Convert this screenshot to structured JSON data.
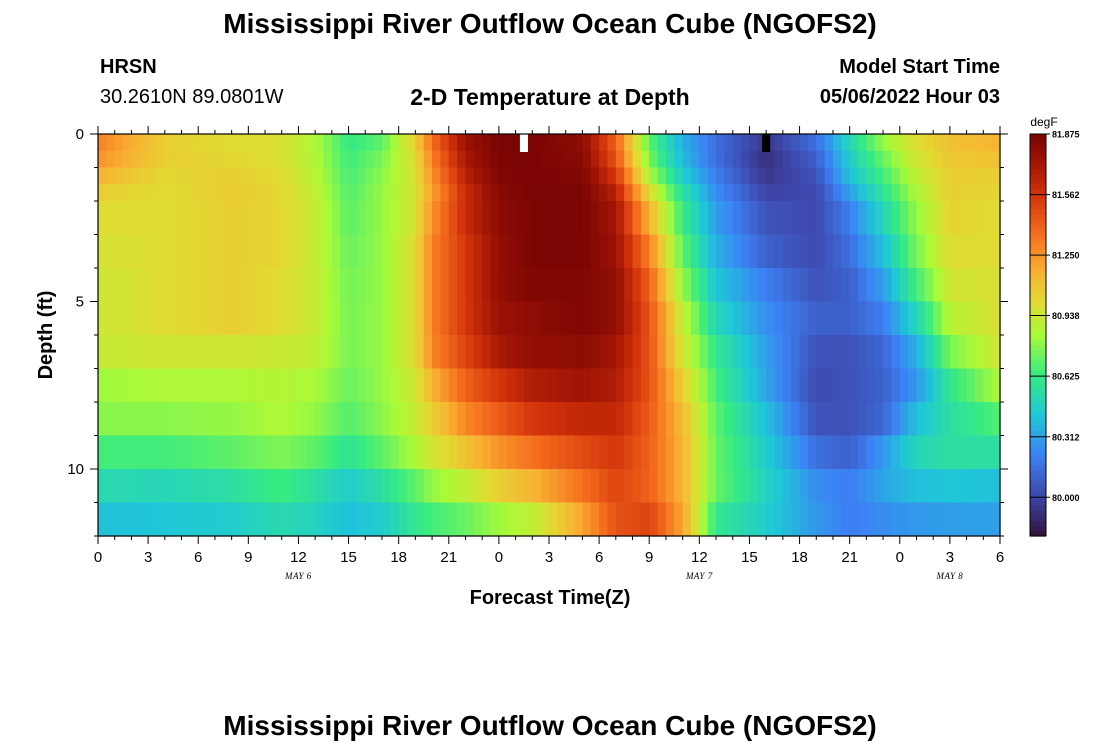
{
  "header": {
    "title": "Mississippi River Outflow Ocean Cube (NGOFS2)",
    "station": "HRSN",
    "coords": "30.2610N  89.0801W",
    "subtitle": "2-D Temperature at Depth",
    "model_start_label": "Model Start Time",
    "model_start_value": "05/06/2022 Hour 03"
  },
  "footer": {
    "title": "Mississippi River Outflow Ocean Cube (NGOFS2)"
  },
  "chart_data": {
    "type": "heatmap",
    "title": "2-D Temperature at Depth",
    "xlabel": "Forecast Time(Z)",
    "ylabel": "Depth (ft)",
    "colorbar_label": "degF",
    "colorbar_ticks": [
      "81.875",
      "81.562",
      "81.250",
      "80.938",
      "80.625",
      "80.312",
      "80.000"
    ],
    "colorbar_range": [
      79.8,
      81.875
    ],
    "x_tick_labels": [
      "0",
      "3",
      "6",
      "9",
      "12",
      "15",
      "18",
      "21",
      "0",
      "3",
      "6",
      "9",
      "12",
      "15",
      "18",
      "21",
      "0",
      "3",
      "6"
    ],
    "x_hours_range": [
      0,
      54
    ],
    "day_labels": [
      {
        "label": "MAY 6",
        "hour": 12
      },
      {
        "label": "MAY 7",
        "hour": 36
      },
      {
        "label": "MAY 8",
        "hour": 51
      }
    ],
    "y_tick_labels": [
      "0",
      "5",
      "10"
    ],
    "y_ticks": [
      0,
      5,
      10
    ],
    "ylim": [
      12,
      0
    ],
    "depth_bands_ft": [
      0,
      0.5,
      1.0,
      1.5,
      2.0,
      3.0,
      4.0,
      5.0,
      6.0,
      7.0,
      8.0,
      9.0,
      10.0,
      11.0,
      12.0
    ],
    "colormap": "turbo",
    "markers": [
      {
        "hour": 25.5,
        "depth_ft": 0.25,
        "color": "#ffffff"
      },
      {
        "hour": 40,
        "depth_ft": 0.25,
        "color": "#000000"
      }
    ],
    "profile_keys": [
      {
        "hour": 0,
        "values": [
          81.3,
          81.25,
          81.15,
          81.05,
          81.0,
          80.97,
          80.94,
          80.94,
          80.92,
          80.82,
          80.78,
          80.65,
          80.52,
          80.4
        ]
      },
      {
        "hour": 4,
        "values": [
          81.05,
          81.05,
          81.02,
          81.0,
          81.0,
          81.0,
          81.0,
          81.0,
          80.95,
          80.85,
          80.78,
          80.65,
          80.5,
          80.42
        ]
      },
      {
        "hour": 8,
        "values": [
          81.0,
          81.02,
          81.05,
          81.06,
          81.05,
          81.05,
          81.05,
          81.05,
          80.95,
          80.85,
          80.8,
          80.7,
          80.55,
          80.45
        ]
      },
      {
        "hour": 11,
        "values": [
          80.98,
          80.98,
          81.0,
          81.02,
          81.02,
          81.02,
          81.0,
          81.0,
          80.93,
          80.87,
          80.85,
          80.76,
          80.64,
          80.52
        ]
      },
      {
        "hour": 13,
        "values": [
          80.85,
          80.86,
          80.88,
          80.9,
          80.92,
          80.92,
          80.92,
          80.92,
          80.9,
          80.84,
          80.8,
          80.7,
          80.55,
          80.48
        ]
      },
      {
        "hour": 15,
        "values": [
          80.62,
          80.64,
          80.66,
          80.68,
          80.7,
          80.72,
          80.74,
          80.75,
          80.75,
          80.72,
          80.68,
          80.58,
          80.45,
          80.4
        ]
      },
      {
        "hour": 17,
        "values": [
          80.7,
          80.75,
          80.78,
          80.8,
          80.8,
          80.8,
          80.8,
          80.8,
          80.8,
          80.8,
          80.78,
          80.7,
          80.55,
          80.45
        ]
      },
      {
        "hour": 19,
        "values": [
          81.05,
          81.0,
          80.98,
          80.97,
          80.98,
          81.0,
          81.0,
          81.0,
          81.0,
          80.95,
          80.92,
          80.85,
          80.7,
          80.6
        ]
      },
      {
        "hour": 20,
        "values": [
          81.35,
          81.3,
          81.25,
          81.2,
          81.25,
          81.3,
          81.3,
          81.3,
          81.28,
          81.15,
          81.05,
          80.95,
          80.8,
          80.65
        ]
      },
      {
        "hour": 22,
        "values": [
          81.75,
          81.7,
          81.65,
          81.6,
          81.6,
          81.55,
          81.55,
          81.55,
          81.5,
          81.4,
          81.28,
          81.1,
          80.9,
          80.72
        ]
      },
      {
        "hour": 24,
        "values": [
          81.87,
          81.87,
          81.85,
          81.82,
          81.8,
          81.78,
          81.78,
          81.75,
          81.7,
          81.55,
          81.42,
          81.25,
          81.05,
          80.82
        ]
      },
      {
        "hour": 26,
        "values": [
          81.87,
          81.87,
          81.87,
          81.87,
          81.87,
          81.87,
          81.85,
          81.8,
          81.78,
          81.68,
          81.55,
          81.35,
          81.15,
          80.9
        ]
      },
      {
        "hour": 29,
        "values": [
          81.8,
          81.82,
          81.85,
          81.87,
          81.87,
          81.87,
          81.85,
          81.85,
          81.8,
          81.73,
          81.62,
          81.48,
          81.35,
          81.2
        ]
      },
      {
        "hour": 31,
        "values": [
          81.4,
          81.45,
          81.55,
          81.65,
          81.72,
          81.75,
          81.78,
          81.78,
          81.72,
          81.68,
          81.62,
          81.55,
          81.5,
          81.45
        ]
      },
      {
        "hour": 33,
        "values": [
          80.7,
          80.75,
          80.85,
          81.0,
          81.15,
          81.3,
          81.4,
          81.45,
          81.45,
          81.45,
          81.42,
          81.4,
          81.4,
          81.5
        ]
      },
      {
        "hour": 35,
        "values": [
          80.35,
          80.38,
          80.45,
          80.55,
          80.62,
          80.7,
          80.8,
          80.9,
          80.95,
          81.05,
          81.12,
          81.15,
          81.15,
          81.2
        ]
      },
      {
        "hour": 37,
        "values": [
          80.15,
          80.15,
          80.2,
          80.25,
          80.3,
          80.35,
          80.42,
          80.5,
          80.6,
          80.65,
          80.7,
          80.72,
          80.72,
          80.6
        ]
      },
      {
        "hour": 40,
        "values": [
          79.95,
          79.92,
          79.95,
          80.0,
          80.05,
          80.1,
          80.2,
          80.25,
          80.3,
          80.32,
          80.4,
          80.45,
          80.48,
          80.45
        ]
      },
      {
        "hour": 43,
        "values": [
          80.15,
          80.1,
          80.05,
          80.02,
          80.02,
          80.02,
          80.05,
          80.1,
          80.05,
          80.02,
          80.05,
          80.15,
          80.25,
          80.28
        ]
      },
      {
        "hour": 45,
        "values": [
          80.5,
          80.45,
          80.4,
          80.3,
          80.2,
          80.15,
          80.1,
          80.1,
          80.05,
          80.05,
          80.05,
          80.1,
          80.2,
          80.2
        ]
      },
      {
        "hour": 47,
        "values": [
          80.8,
          80.72,
          80.65,
          80.58,
          80.5,
          80.4,
          80.3,
          80.2,
          80.12,
          80.1,
          80.12,
          80.28,
          80.32,
          80.25
        ]
      },
      {
        "hour": 49,
        "values": [
          81.0,
          80.95,
          80.9,
          80.85,
          80.8,
          80.75,
          80.65,
          80.5,
          80.35,
          80.28,
          80.4,
          80.5,
          80.4,
          80.28
        ]
      },
      {
        "hour": 51,
        "values": [
          81.1,
          81.08,
          81.05,
          81.05,
          81.03,
          81.0,
          80.95,
          80.88,
          80.75,
          80.6,
          80.55,
          80.55,
          80.42,
          80.3
        ]
      },
      {
        "hour": 54,
        "values": [
          81.15,
          81.1,
          81.05,
          81.02,
          81.0,
          81.0,
          80.98,
          80.98,
          80.95,
          80.85,
          80.68,
          80.55,
          80.4,
          80.3
        ]
      }
    ]
  }
}
